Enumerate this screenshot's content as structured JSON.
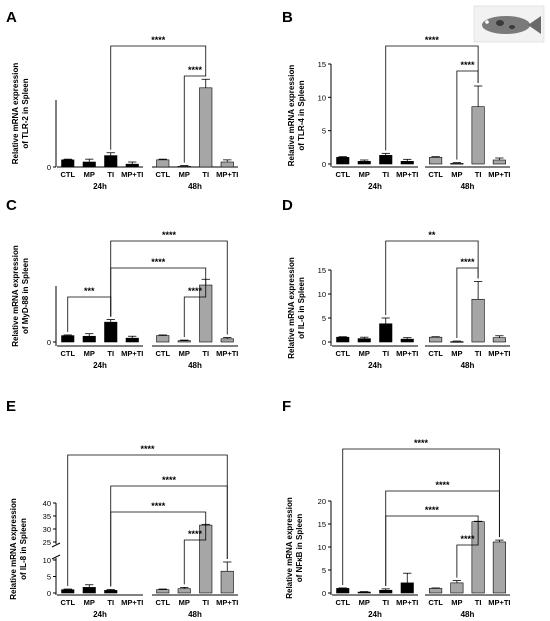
{
  "colors": {
    "group_24h": "#000000",
    "group_48h": "#a6a6a6",
    "axis": "#000000"
  },
  "fish_icon": "fish-thumbnail-icon",
  "chart_data": [
    {
      "panel": "A",
      "type": "bar",
      "categories": [
        "CTL",
        "MP",
        "TI",
        "MP+TI",
        "CTL",
        "MP",
        "TI",
        "MP+TI"
      ],
      "groups": [
        "24h",
        "48h"
      ],
      "values": [
        1.0,
        0.7,
        1.6,
        0.4,
        1.0,
        0.1,
        11.1,
        0.7
      ],
      "errors": [
        0.1,
        0.4,
        0.4,
        0.3,
        0.1,
        0.1,
        1.2,
        0.3
      ],
      "ylabel_lines": [
        "Relative mRNA expression",
        "of TLR-2 in Spleen"
      ],
      "ylim": [
        0,
        15
      ],
      "yticks": [],
      "ytick_labels": [
        "0"
      ],
      "brackets": [
        {
          "from": 2,
          "to": 6,
          "label": "****"
        },
        {
          "from": 5,
          "to": 6,
          "label": "****"
        }
      ]
    },
    {
      "panel": "B",
      "type": "bar",
      "categories": [
        "CTL",
        "MP",
        "TI",
        "MP+TI",
        "CTL",
        "MP",
        "TI",
        "MP+TI"
      ],
      "groups": [
        "24h",
        "48h"
      ],
      "values": [
        1.0,
        0.4,
        1.3,
        0.4,
        1.0,
        0.1,
        8.6,
        0.6
      ],
      "errors": [
        0.1,
        0.2,
        0.3,
        0.3,
        0.1,
        0.1,
        3.1,
        0.3
      ],
      "ylabel_lines": [
        "Relative mRNA expression",
        "of TLR-4 in Spleen"
      ],
      "ylim": [
        0,
        15
      ],
      "yticks": [
        0,
        5,
        10,
        15
      ],
      "ytick_labels": [
        "0",
        "5",
        "10",
        "15"
      ],
      "brackets": [
        {
          "from": 2,
          "to": 6,
          "label": "****"
        },
        {
          "from": 5,
          "to": 6,
          "label": "****"
        }
      ]
    },
    {
      "panel": "C",
      "type": "bar",
      "categories": [
        "CTL",
        "MP",
        "TI",
        "MP+TI",
        "CTL",
        "MP",
        "TI",
        "MP+TI"
      ],
      "groups": [
        "24h",
        "48h"
      ],
      "values": [
        1.0,
        0.9,
        3.1,
        0.6,
        1.0,
        0.2,
        8.9,
        0.5
      ],
      "errors": [
        0.1,
        0.4,
        0.4,
        0.3,
        0.1,
        0.1,
        0.9,
        0.2
      ],
      "ylabel_lines": [
        "Relative mRNA expression",
        "of MyD-88 in Spleen"
      ],
      "ylim": [
        0,
        15
      ],
      "yticks": [],
      "ytick_labels": [
        "0"
      ],
      "brackets": [
        {
          "from": 0,
          "to": 2,
          "label": "***"
        },
        {
          "from": 2,
          "to": 6,
          "label": "****"
        },
        {
          "from": 2,
          "to": 7,
          "label": "****"
        },
        {
          "from": 5,
          "to": 6,
          "label": "****"
        }
      ]
    },
    {
      "panel": "D",
      "type": "bar",
      "categories": [
        "CTL",
        "MP",
        "TI",
        "MP+TI",
        "CTL",
        "MP",
        "TI",
        "MP+TI"
      ],
      "groups": [
        "24h",
        "48h"
      ],
      "values": [
        1.0,
        0.7,
        3.8,
        0.6,
        1.0,
        0.1,
        8.9,
        0.9
      ],
      "errors": [
        0.1,
        0.3,
        1.2,
        0.3,
        0.1,
        0.1,
        3.7,
        0.4
      ],
      "ylabel_lines": [
        "Relative mRNA expression",
        "of IL-6 in Spleen"
      ],
      "ylim": [
        0,
        15
      ],
      "yticks": [
        0,
        5,
        10,
        15
      ],
      "ytick_labels": [
        "0",
        "5",
        "10",
        "15"
      ],
      "brackets": [
        {
          "from": 2,
          "to": 6,
          "label": "**"
        },
        {
          "from": 5,
          "to": 6,
          "label": "****"
        }
      ]
    },
    {
      "panel": "E",
      "type": "bar",
      "categories": [
        "CTL",
        "MP",
        "TI",
        "MP+TI",
        "CTL",
        "MP",
        "TI",
        "MP+TI"
      ],
      "groups": [
        "24h",
        "48h"
      ],
      "values": [
        1.0,
        1.7,
        0.8,
        null,
        1.0,
        1.3,
        31.5,
        6.6
      ],
      "errors": [
        0.2,
        0.8,
        0.3,
        null,
        0.2,
        0.4,
        0.3,
        2.8
      ],
      "ylabel_lines": [
        "Relative mRNA expression",
        "of IL-8 in Spleen"
      ],
      "ylim": [
        0,
        40
      ],
      "y_axis_break": [
        10,
        25
      ],
      "yticks": [
        0,
        5,
        10,
        25,
        30,
        35,
        40
      ],
      "ytick_labels": [
        "0",
        "5",
        "10",
        "25",
        "30",
        "35",
        "40"
      ],
      "brackets": [
        {
          "from": 0,
          "to": 7,
          "label": "****"
        },
        {
          "from": 2,
          "to": 7,
          "label": "****"
        },
        {
          "from": 2,
          "to": 6,
          "label": "****"
        },
        {
          "from": 5,
          "to": 6,
          "label": "****"
        }
      ]
    },
    {
      "panel": "F",
      "type": "bar",
      "categories": [
        "CTL",
        "MP",
        "TI",
        "MP+TI",
        "CTL",
        "MP",
        "TI",
        "MP+TI"
      ],
      "groups": [
        "24h",
        "48h"
      ],
      "values": [
        1.0,
        0.2,
        0.6,
        2.2,
        1.0,
        2.2,
        15.5,
        11.1
      ],
      "errors": [
        0.1,
        0.1,
        0.3,
        2.1,
        0.1,
        0.5,
        0.1,
        0.4
      ],
      "ylabel_lines": [
        "Relative mRNA expression",
        "of NFκB in Spleen"
      ],
      "ylim": [
        0,
        20
      ],
      "yticks": [
        0,
        5,
        10,
        15,
        20
      ],
      "ytick_labels": [
        "0",
        "5",
        "10",
        "15",
        "20"
      ],
      "brackets": [
        {
          "from": 0,
          "to": 7,
          "label": "****"
        },
        {
          "from": 2,
          "to": 7,
          "label": "****"
        },
        {
          "from": 2,
          "to": 6,
          "label": "****"
        },
        {
          "from": 5,
          "to": 6,
          "label": "****"
        }
      ]
    }
  ]
}
